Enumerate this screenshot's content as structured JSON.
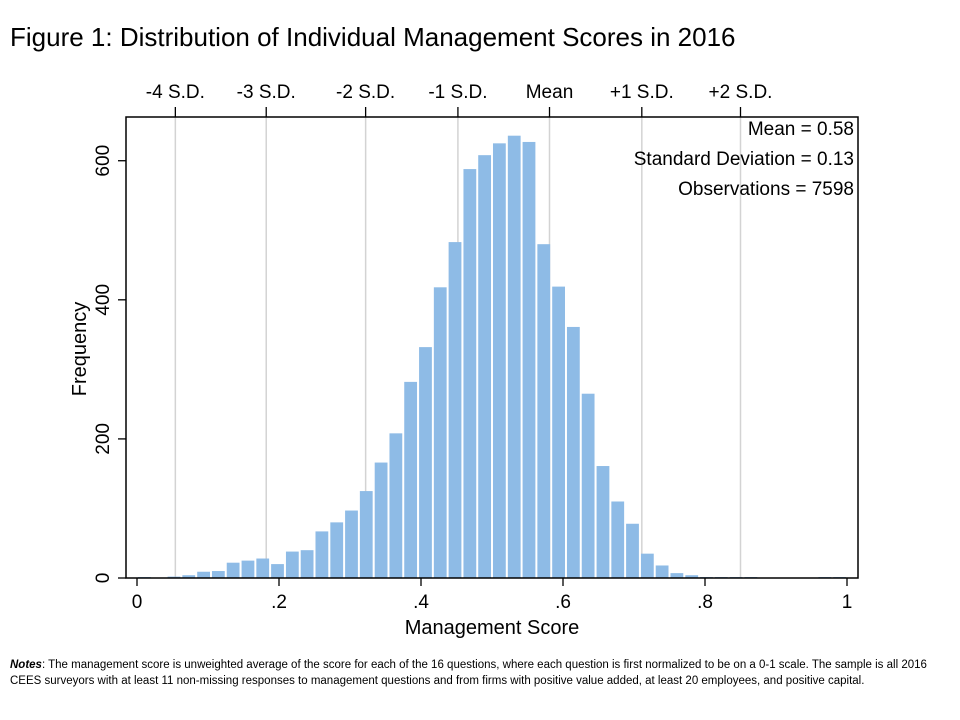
{
  "figure": {
    "title": "Figure 1: Distribution of Individual Management Scores in 2016",
    "notes_label": "Notes",
    "notes_text": ": The management score is unweighted average of the score for each of the 16 questions, where each question is first normalized to be on a 0-1 scale. The sample is all 2016 CEES surveyors with at least 11 non-missing responses to management questions and from firms with positive value added, at least 20 employees, and positive capital."
  },
  "chart_data": {
    "type": "bar",
    "title": "",
    "xlabel": "Management Score",
    "ylabel": "Frequency",
    "xlim": [
      0,
      1
    ],
    "ylim": [
      0,
      660
    ],
    "bin_width": 0.02083,
    "xticks": [
      0,
      0.2,
      0.4,
      0.6,
      0.8,
      1
    ],
    "xtick_labels": [
      "0",
      ".2",
      ".4",
      ".6",
      ".8",
      "1"
    ],
    "yticks": [
      0,
      200,
      400,
      600
    ],
    "ytick_labels": [
      "0",
      "200",
      "400",
      "600"
    ],
    "bar_color": "#8ebbe6",
    "stats": [
      "Mean = 0.58",
      "Standard Deviation = 0.13",
      "Observations = 7598"
    ],
    "sd_lines": [
      {
        "label": "-4 S.D.",
        "x": 0.054
      },
      {
        "label": "-3 S.D.",
        "x": 0.182
      },
      {
        "label": "-2 S.D.",
        "x": 0.322
      },
      {
        "label": "-1 S.D.",
        "x": 0.452
      },
      {
        "label": "Mean",
        "x": 0.581
      },
      {
        "label": "+1 S.D.",
        "x": 0.711
      },
      {
        "label": "+2 S.D.",
        "x": 0.85
      }
    ],
    "bins": [
      {
        "x": 0.0104,
        "y": 1
      },
      {
        "x": 0.0313,
        "y": 0
      },
      {
        "x": 0.0521,
        "y": 2
      },
      {
        "x": 0.0729,
        "y": 4
      },
      {
        "x": 0.0938,
        "y": 9
      },
      {
        "x": 0.1146,
        "y": 10
      },
      {
        "x": 0.1354,
        "y": 22
      },
      {
        "x": 0.1563,
        "y": 25
      },
      {
        "x": 0.1771,
        "y": 28
      },
      {
        "x": 0.1979,
        "y": 20
      },
      {
        "x": 0.2188,
        "y": 38
      },
      {
        "x": 0.2396,
        "y": 40
      },
      {
        "x": 0.2604,
        "y": 67
      },
      {
        "x": 0.2813,
        "y": 80
      },
      {
        "x": 0.3021,
        "y": 97
      },
      {
        "x": 0.3229,
        "y": 125
      },
      {
        "x": 0.3438,
        "y": 166
      },
      {
        "x": 0.3646,
        "y": 208
      },
      {
        "x": 0.3854,
        "y": 282
      },
      {
        "x": 0.4063,
        "y": 332
      },
      {
        "x": 0.4271,
        "y": 418
      },
      {
        "x": 0.4479,
        "y": 483
      },
      {
        "x": 0.4688,
        "y": 588
      },
      {
        "x": 0.4896,
        "y": 608
      },
      {
        "x": 0.5104,
        "y": 625
      },
      {
        "x": 0.5313,
        "y": 636
      },
      {
        "x": 0.5521,
        "y": 627
      },
      {
        "x": 0.5729,
        "y": 480
      },
      {
        "x": 0.5938,
        "y": 419
      },
      {
        "x": 0.6146,
        "y": 361
      },
      {
        "x": 0.6354,
        "y": 265
      },
      {
        "x": 0.6563,
        "y": 161
      },
      {
        "x": 0.6771,
        "y": 110
      },
      {
        "x": 0.6979,
        "y": 78
      },
      {
        "x": 0.7188,
        "y": 35
      },
      {
        "x": 0.7396,
        "y": 18
      },
      {
        "x": 0.7604,
        "y": 7
      },
      {
        "x": 0.7813,
        "y": 4
      },
      {
        "x": 0.8021,
        "y": 1
      },
      {
        "x": 0.8229,
        "y": 1
      },
      {
        "x": 0.8438,
        "y": 1
      },
      {
        "x": 0.8646,
        "y": 1
      },
      {
        "x": 0.8854,
        "y": 0
      },
      {
        "x": 0.9063,
        "y": 0
      },
      {
        "x": 0.9271,
        "y": 0
      },
      {
        "x": 0.9479,
        "y": 0
      },
      {
        "x": 0.9688,
        "y": 1
      },
      {
        "x": 0.9896,
        "y": 1
      }
    ]
  }
}
